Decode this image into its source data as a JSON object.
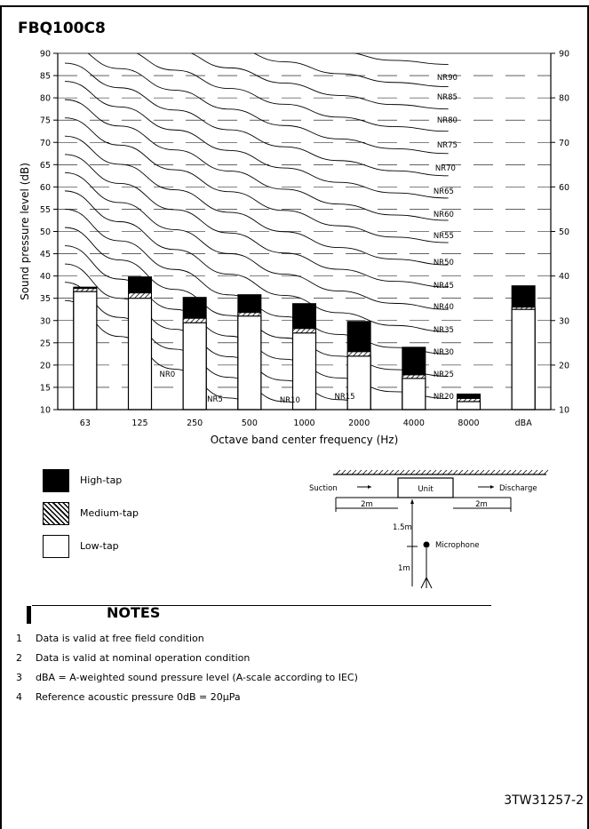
{
  "title": "FBQ100C8",
  "chart_data": {
    "type": "bar",
    "title": "",
    "xlabel": "Octave band center frequency (Hz)",
    "ylabel": "Sound pressure level (dB)",
    "ylabel_right": "",
    "ylim": [
      10,
      90
    ],
    "yticks_left": [
      10,
      15,
      20,
      25,
      30,
      35,
      40,
      45,
      50,
      55,
      60,
      65,
      70,
      75,
      80,
      85,
      90
    ],
    "yticks_right": [
      10,
      20,
      30,
      40,
      50,
      60,
      70,
      80,
      90
    ],
    "categories": [
      "63",
      "125",
      "250",
      "500",
      "1000",
      "2000",
      "4000",
      "8000",
      "dBA"
    ],
    "series": [
      {
        "name": "High-tap",
        "values": [
          37.5,
          39.8,
          35.2,
          35.8,
          33.8,
          29.8,
          24.0,
          13.5,
          37.8
        ]
      },
      {
        "name": "Medium-tap",
        "values": [
          37.2,
          36.2,
          30.5,
          31.8,
          28.2,
          23.0,
          17.8,
          12.5,
          33.0
        ]
      },
      {
        "name": "Low-tap",
        "values": [
          36.5,
          35.0,
          29.5,
          31.0,
          27.2,
          22.0,
          17.0,
          11.8,
          32.5
        ]
      }
    ],
    "nr_curves": [
      "NR0",
      "NR5",
      "NR10",
      "NR15",
      "NR20",
      "NR25",
      "NR30",
      "NR35",
      "NR40",
      "NR45",
      "NR50",
      "NR55",
      "NR60",
      "NR65",
      "NR70",
      "NR75",
      "NR80",
      "NR85",
      "NR90"
    ],
    "grid": true,
    "legend_position": "below-left"
  },
  "legend": {
    "high": "High-tap",
    "medium": "Medium-tap",
    "low": "Low-tap"
  },
  "diagram": {
    "suction": "Suction",
    "unit": "Unit",
    "discharge": "Discharge",
    "dist_left": "2m",
    "dist_right": "2m",
    "height_upper": "1.5m",
    "height_lower": "1m",
    "microphone": "Microphone"
  },
  "notes": {
    "title": "NOTES",
    "items": [
      {
        "num": "1",
        "text": "Data is valid at free field condition"
      },
      {
        "num": "2",
        "text": "Data is valid at nominal operation condition"
      },
      {
        "num": "3",
        "text": "dBA = A-weighted sound pressure level (A-scale according to IEC)"
      },
      {
        "num": "4",
        "text": "Reference acoustic pressure 0dB = 20μPa"
      }
    ]
  },
  "doc_code": "3TW31257-2",
  "colors": {
    "ink": "#000000",
    "paper": "#ffffff"
  }
}
